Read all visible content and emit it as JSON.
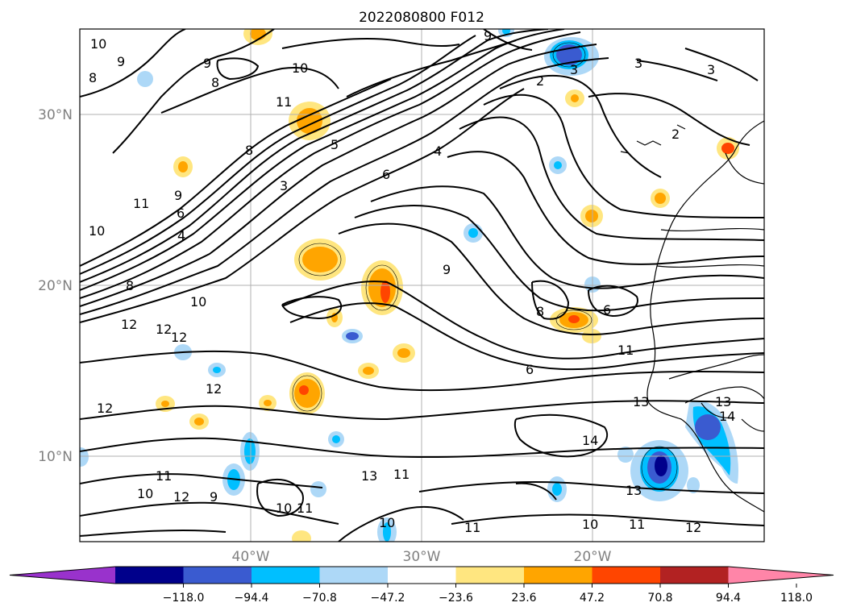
{
  "title": "2022080800 F012",
  "map": {
    "lat_labels": [
      "30°N",
      "20°N",
      "10°N"
    ],
    "lon_labels": [
      "40°W",
      "30°W",
      "20°W"
    ],
    "grid": true,
    "tick_label_color": "#808080"
  },
  "colorbar": {
    "extend": "both",
    "levels": [
      -118.0,
      -94.4,
      -70.8,
      -47.2,
      -23.6,
      23.6,
      47.2,
      70.8,
      94.4,
      118.0
    ],
    "tick_labels": [
      "−118.0",
      "−94.4",
      "−70.8",
      "−47.2",
      "−23.6",
      "23.6",
      "47.2",
      "70.8",
      "94.4",
      "118.0"
    ],
    "colors": [
      "#9932cc",
      "#00008b",
      "#3a5bd0",
      "#00bfff",
      "#add8f7",
      "#ffffff",
      "#ffe680",
      "#ffa500",
      "#ff4500",
      "#b22222",
      "#ff85a8"
    ]
  },
  "contour_labels": [
    "10",
    "9",
    "8",
    "9",
    "8",
    "10",
    "11",
    "3",
    "8",
    "5",
    "4",
    "6",
    "3",
    "11",
    "9",
    "6",
    "4",
    "10",
    "8",
    "10",
    "9",
    "12",
    "12",
    "12",
    "13",
    "12",
    "13",
    "12",
    "11",
    "10",
    "11",
    "12",
    "9",
    "11",
    "10",
    "10",
    "11",
    "9",
    "6",
    "8",
    "6",
    "11",
    "13",
    "14",
    "14",
    "13",
    "11",
    "12",
    "10",
    "2",
    "3",
    "2",
    "3"
  ]
}
